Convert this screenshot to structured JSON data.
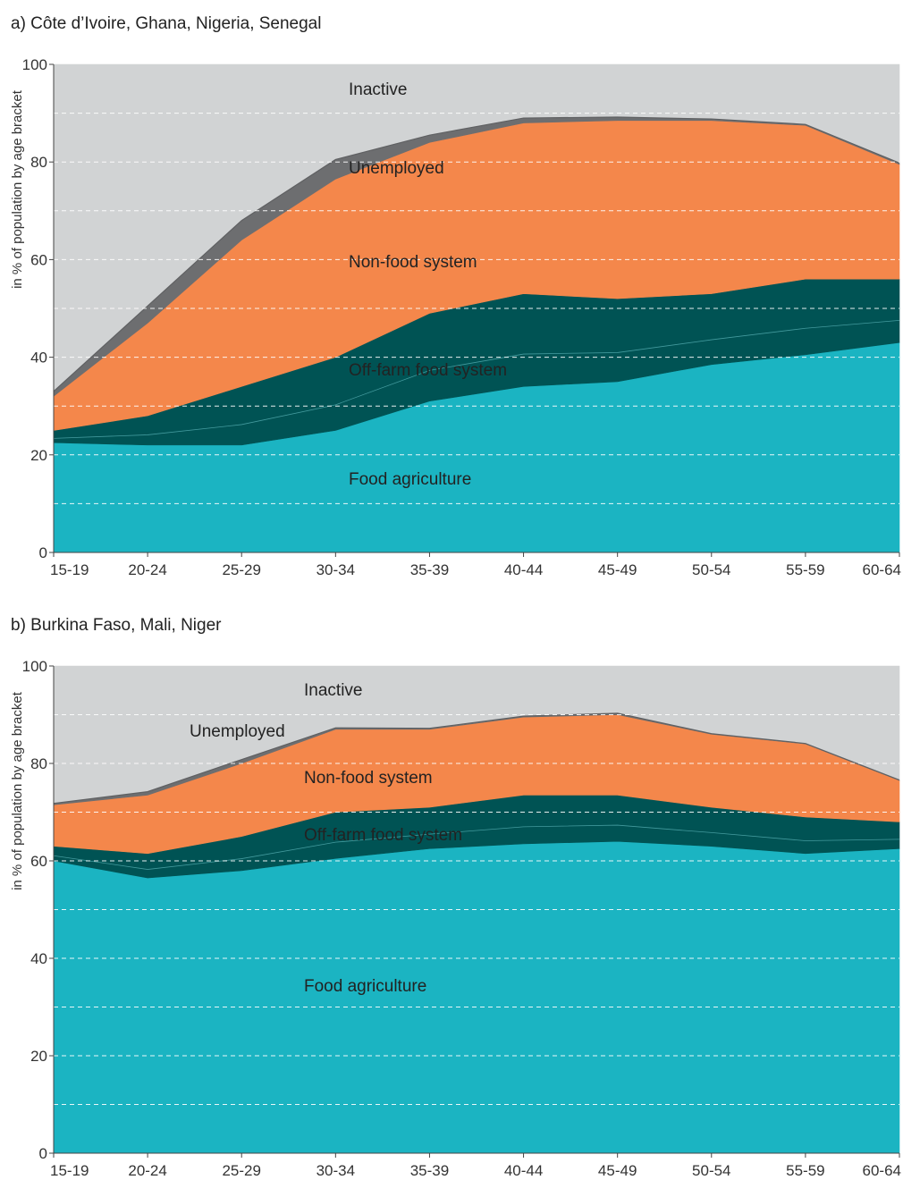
{
  "chart_data": [
    {
      "type": "area",
      "stacked": true,
      "title": "a) Côte d’Ivoire, Ghana, Nigeria, Senegal",
      "xlabel": "",
      "ylabel": "in % of population by age bracket",
      "ylim": [
        0,
        100
      ],
      "yticks": [
        "0",
        "20",
        "40",
        "60",
        "80",
        "100"
      ],
      "grid": true,
      "categories": [
        "15-19",
        "20-24",
        "25-29",
        "30-34",
        "35-39",
        "40-44",
        "45-49",
        "50-54",
        "55-59",
        "60-64"
      ],
      "series": [
        {
          "name": "Food agriculture",
          "color": "#1bb4c2",
          "values": [
            22.5,
            22.0,
            22.0,
            25.0,
            31.0,
            34.0,
            35.0,
            38.5,
            40.5,
            43.0
          ]
        },
        {
          "name": "Off-farm food system",
          "color": "#005354",
          "values": [
            2.5,
            6.0,
            12.0,
            15.0,
            18.0,
            19.0,
            17.0,
            14.5,
            15.5,
            13.0
          ]
        },
        {
          "name": "Non-food system",
          "color": "#f4874b",
          "values": [
            7.0,
            19.0,
            30.0,
            36.5,
            35.0,
            35.0,
            36.5,
            35.5,
            31.5,
            23.5
          ]
        },
        {
          "name": "Unemployed",
          "color": "#6d6e70",
          "values": [
            1.0,
            3.5,
            4.0,
            4.0,
            1.5,
            1.0,
            0.7,
            0.3,
            0.2,
            0.3
          ]
        },
        {
          "name": "Inactive",
          "color": "#d1d3d4",
          "values": [
            67.0,
            49.5,
            32.0,
            19.5,
            14.5,
            11.0,
            10.8,
            11.2,
            12.3,
            20.2
          ]
        }
      ]
    },
    {
      "type": "area",
      "stacked": true,
      "title": "b) Burkina Faso, Mali, Niger",
      "xlabel": "",
      "ylabel": "in % of population by age bracket",
      "ylim": [
        0,
        100
      ],
      "yticks": [
        "0",
        "20",
        "40",
        "60",
        "80",
        "100"
      ],
      "grid": true,
      "categories": [
        "15-19",
        "20-24",
        "25-29",
        "30-34",
        "35-39",
        "40-44",
        "45-49",
        "50-54",
        "55-59",
        "60-64"
      ],
      "series": [
        {
          "name": "Food agriculture",
          "color": "#1bb4c2",
          "values": [
            60.0,
            56.5,
            58.0,
            60.5,
            62.5,
            63.5,
            64.0,
            63.0,
            61.5,
            62.5
          ]
        },
        {
          "name": "Off-farm food system",
          "color": "#005354",
          "values": [
            3.0,
            5.0,
            7.0,
            9.5,
            8.5,
            10.0,
            9.5,
            8.0,
            7.5,
            5.5
          ]
        },
        {
          "name": "Non-food system",
          "color": "#f4874b",
          "values": [
            8.5,
            12.0,
            15.0,
            17.0,
            16.0,
            16.0,
            16.5,
            15.0,
            15.0,
            8.5
          ]
        },
        {
          "name": "Unemployed",
          "color": "#6d6e70",
          "values": [
            0.3,
            0.7,
            0.8,
            0.3,
            0.2,
            0.2,
            0.3,
            0.1,
            0.1,
            0.1
          ]
        },
        {
          "name": "Inactive",
          "color": "#d1d3d4",
          "values": [
            28.2,
            25.8,
            19.2,
            12.7,
            12.8,
            10.3,
            9.7,
            13.9,
            15.9,
            23.4
          ]
        }
      ]
    }
  ]
}
